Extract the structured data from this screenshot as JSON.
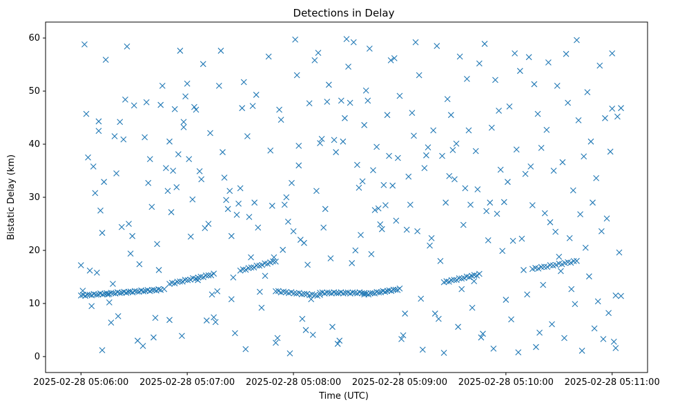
{
  "chart_data": {
    "type": "scatter",
    "title": "Detections in Delay",
    "xlabel": "Time (UTC)",
    "ylabel": "Bistatic Delay (km)",
    "x_unit": "seconds after 2025-02-28 05:06:00",
    "xlim": [
      -20,
      320
    ],
    "ylim": [
      -3,
      63
    ],
    "grid": false,
    "marker": "x",
    "marker_color": "#1f77b4",
    "x_ticks": [
      {
        "value": 0,
        "label": "2025-02-28 05:06:00"
      },
      {
        "value": 60,
        "label": "2025-02-28 05:07:00"
      },
      {
        "value": 120,
        "label": "2025-02-28 05:08:00"
      },
      {
        "value": 180,
        "label": "2025-02-28 05:09:00"
      },
      {
        "value": 240,
        "label": "2025-02-28 05:10:00"
      },
      {
        "value": 300,
        "label": "2025-02-28 05:11:00"
      }
    ],
    "y_ticks": [
      {
        "value": 0,
        "label": "0"
      },
      {
        "value": 10,
        "label": "10"
      },
      {
        "value": 20,
        "label": "20"
      },
      {
        "value": 30,
        "label": "30"
      },
      {
        "value": 40,
        "label": "40"
      },
      {
        "value": 50,
        "label": "50"
      },
      {
        "value": 60,
        "label": "60"
      }
    ],
    "track_segments": [
      {
        "x_start": 0,
        "x_end": 45,
        "y_start": 11.5,
        "y_end": 12.6,
        "count": 38
      },
      {
        "x_start": 50,
        "x_end": 75,
        "y_start": 13.7,
        "y_end": 15.5,
        "count": 18
      },
      {
        "x_start": 90,
        "x_end": 110,
        "y_start": 16.2,
        "y_end": 18.0,
        "count": 14
      },
      {
        "x_start": 110,
        "x_end": 135,
        "y_start": 12.3,
        "y_end": 11.5,
        "count": 18
      },
      {
        "x_start": 135,
        "x_end": 160,
        "y_start": 12.0,
        "y_end": 12.0,
        "count": 20
      },
      {
        "x_start": 160,
        "x_end": 180,
        "y_start": 11.7,
        "y_end": 12.7,
        "count": 18
      },
      {
        "x_start": 205,
        "x_end": 225,
        "y_start": 14.0,
        "y_end": 15.5,
        "count": 15
      },
      {
        "x_start": 255,
        "x_end": 280,
        "y_start": 16.5,
        "y_end": 18.0,
        "count": 16
      }
    ],
    "points": [
      [
        0,
        17.2
      ],
      [
        1,
        12.4
      ],
      [
        2,
        58.8
      ],
      [
        3,
        45.7
      ],
      [
        4,
        37.5
      ],
      [
        5,
        16.2
      ],
      [
        6,
        9.5
      ],
      [
        7,
        35.8
      ],
      [
        8,
        30.8
      ],
      [
        9,
        15.8
      ],
      [
        10,
        44.3
      ],
      [
        10,
        42.5
      ],
      [
        11,
        27.5
      ],
      [
        12,
        23.3
      ],
      [
        12,
        1.2
      ],
      [
        13,
        32.9
      ],
      [
        14,
        55.9
      ],
      [
        15,
        11.7
      ],
      [
        16,
        10.2
      ],
      [
        17,
        6.4
      ],
      [
        18,
        13.7
      ],
      [
        19,
        41.5
      ],
      [
        20,
        34.5
      ],
      [
        21,
        7.6
      ],
      [
        22,
        44.2
      ],
      [
        23,
        24.4
      ],
      [
        24,
        40.9
      ],
      [
        25,
        48.4
      ],
      [
        26,
        58.4
      ],
      [
        27,
        25.0
      ],
      [
        28,
        19.4
      ],
      [
        29,
        22.7
      ],
      [
        30,
        47.3
      ],
      [
        32,
        3.0
      ],
      [
        33,
        17.4
      ],
      [
        35,
        2.0
      ],
      [
        36,
        41.3
      ],
      [
        37,
        47.9
      ],
      [
        38,
        32.7
      ],
      [
        39,
        37.2
      ],
      [
        40,
        28.2
      ],
      [
        41,
        3.6
      ],
      [
        42,
        7.3
      ],
      [
        43,
        21.2
      ],
      [
        44,
        16.3
      ],
      [
        45,
        47.4
      ],
      [
        46,
        51.0
      ],
      [
        47,
        12.7
      ],
      [
        48,
        35.5
      ],
      [
        49,
        31.2
      ],
      [
        50,
        40.5
      ],
      [
        50,
        6.9
      ],
      [
        51,
        27.2
      ],
      [
        52,
        35.0
      ],
      [
        53,
        46.6
      ],
      [
        54,
        31.9
      ],
      [
        55,
        38.1
      ],
      [
        56,
        57.6
      ],
      [
        57,
        3.9
      ],
      [
        58,
        44.2
      ],
      [
        58,
        43.2
      ],
      [
        59,
        49.0
      ],
      [
        60,
        51.4
      ],
      [
        61,
        37.2
      ],
      [
        62,
        22.6
      ],
      [
        63,
        29.6
      ],
      [
        64,
        47.0
      ],
      [
        65,
        46.5
      ],
      [
        66,
        14.4
      ],
      [
        67,
        34.9
      ],
      [
        68,
        33.4
      ],
      [
        69,
        55.1
      ],
      [
        70,
        24.2
      ],
      [
        71,
        6.8
      ],
      [
        72,
        25.0
      ],
      [
        73,
        42.1
      ],
      [
        74,
        11.7
      ],
      [
        75,
        7.4
      ],
      [
        76,
        6.5
      ],
      [
        77,
        12.3
      ],
      [
        78,
        51.0
      ],
      [
        79,
        57.6
      ],
      [
        80,
        38.5
      ],
      [
        81,
        33.7
      ],
      [
        82,
        29.5
      ],
      [
        83,
        27.8
      ],
      [
        84,
        31.2
      ],
      [
        85,
        22.7
      ],
      [
        85,
        10.8
      ],
      [
        86,
        14.9
      ],
      [
        87,
        4.4
      ],
      [
        88,
        26.7
      ],
      [
        89,
        28.8
      ],
      [
        90,
        31.7
      ],
      [
        91,
        46.8
      ],
      [
        92,
        51.7
      ],
      [
        93,
        1.4
      ],
      [
        94,
        41.5
      ],
      [
        95,
        26.3
      ],
      [
        96,
        18.7
      ],
      [
        97,
        47.2
      ],
      [
        98,
        29.0
      ],
      [
        99,
        49.3
      ],
      [
        100,
        24.3
      ],
      [
        101,
        12.2
      ],
      [
        102,
        9.2
      ],
      [
        104,
        15.2
      ],
      [
        106,
        56.5
      ],
      [
        107,
        38.8
      ],
      [
        108,
        28.4
      ],
      [
        109,
        18.7
      ],
      [
        110,
        2.6
      ],
      [
        111,
        3.5
      ],
      [
        112,
        46.5
      ],
      [
        113,
        44.6
      ],
      [
        114,
        20.1
      ],
      [
        115,
        28.6
      ],
      [
        116,
        30.0
      ],
      [
        117,
        25.4
      ],
      [
        118,
        0.6
      ],
      [
        119,
        32.7
      ],
      [
        120,
        23.6
      ],
      [
        121,
        59.7
      ],
      [
        122,
        53.0
      ],
      [
        123,
        36.0
      ],
      [
        123,
        39.7
      ],
      [
        124,
        22.0
      ],
      [
        125,
        7.1
      ],
      [
        126,
        21.4
      ],
      [
        127,
        5.0
      ],
      [
        128,
        17.3
      ],
      [
        129,
        47.7
      ],
      [
        130,
        10.8
      ],
      [
        131,
        4.1
      ],
      [
        132,
        55.8
      ],
      [
        133,
        31.2
      ],
      [
        134,
        57.2
      ],
      [
        135,
        40.2
      ],
      [
        136,
        41.0
      ],
      [
        137,
        24.3
      ],
      [
        138,
        27.8
      ],
      [
        139,
        48.0
      ],
      [
        140,
        51.2
      ],
      [
        141,
        18.5
      ],
      [
        142,
        5.6
      ],
      [
        143,
        40.8
      ],
      [
        144,
        38.5
      ],
      [
        145,
        2.4
      ],
      [
        146,
        3.0
      ],
      [
        147,
        48.2
      ],
      [
        148,
        40.5
      ],
      [
        149,
        44.9
      ],
      [
        150,
        59.8
      ],
      [
        151,
        54.6
      ],
      [
        152,
        47.8
      ],
      [
        153,
        17.6
      ],
      [
        154,
        59.2
      ],
      [
        155,
        20.0
      ],
      [
        156,
        36.1
      ],
      [
        157,
        31.8
      ],
      [
        158,
        22.9
      ],
      [
        159,
        33.0
      ],
      [
        160,
        43.6
      ],
      [
        161,
        50.1
      ],
      [
        162,
        48.2
      ],
      [
        163,
        58.0
      ],
      [
        164,
        19.3
      ],
      [
        165,
        35.1
      ],
      [
        166,
        27.6
      ],
      [
        167,
        39.5
      ],
      [
        168,
        27.9
      ],
      [
        169,
        24.9
      ],
      [
        170,
        24.0
      ],
      [
        171,
        32.3
      ],
      [
        172,
        28.5
      ],
      [
        173,
        45.5
      ],
      [
        174,
        37.8
      ],
      [
        175,
        55.8
      ],
      [
        176,
        32.2
      ],
      [
        177,
        56.2
      ],
      [
        178,
        25.6
      ],
      [
        179,
        37.4
      ],
      [
        180,
        49.1
      ],
      [
        181,
        3.3
      ],
      [
        182,
        4.0
      ],
      [
        183,
        8.1
      ],
      [
        184,
        23.9
      ],
      [
        185,
        33.9
      ],
      [
        186,
        28.6
      ],
      [
        187,
        45.9
      ],
      [
        188,
        41.6
      ],
      [
        189,
        59.2
      ],
      [
        190,
        23.6
      ],
      [
        191,
        53.0
      ],
      [
        192,
        10.9
      ],
      [
        193,
        1.3
      ],
      [
        194,
        35.5
      ],
      [
        195,
        37.9
      ],
      [
        196,
        39.4
      ],
      [
        197,
        20.9
      ],
      [
        198,
        22.3
      ],
      [
        199,
        42.6
      ],
      [
        200,
        8.1
      ],
      [
        201,
        58.5
      ],
      [
        202,
        7.1
      ],
      [
        203,
        18.0
      ],
      [
        204,
        37.8
      ],
      [
        205,
        0.7
      ],
      [
        206,
        29.0
      ],
      [
        207,
        48.5
      ],
      [
        208,
        34.0
      ],
      [
        209,
        45.5
      ],
      [
        210,
        38.9
      ],
      [
        211,
        33.4
      ],
      [
        212,
        40.1
      ],
      [
        213,
        5.6
      ],
      [
        214,
        56.5
      ],
      [
        215,
        12.7
      ],
      [
        216,
        24.8
      ],
      [
        217,
        31.7
      ],
      [
        218,
        52.3
      ],
      [
        219,
        42.6
      ],
      [
        220,
        28.6
      ],
      [
        221,
        9.2
      ],
      [
        222,
        14.2
      ],
      [
        223,
        38.7
      ],
      [
        224,
        31.5
      ],
      [
        225,
        55.2
      ],
      [
        226,
        3.6
      ],
      [
        227,
        4.3
      ],
      [
        228,
        58.9
      ],
      [
        229,
        27.4
      ],
      [
        230,
        21.9
      ],
      [
        231,
        29.0
      ],
      [
        232,
        43.1
      ],
      [
        233,
        1.5
      ],
      [
        234,
        52.1
      ],
      [
        235,
        26.9
      ],
      [
        236,
        46.3
      ],
      [
        237,
        35.2
      ],
      [
        238,
        19.9
      ],
      [
        239,
        29.1
      ],
      [
        240,
        10.7
      ],
      [
        241,
        32.9
      ],
      [
        242,
        47.1
      ],
      [
        243,
        7.0
      ],
      [
        244,
        21.8
      ],
      [
        245,
        57.1
      ],
      [
        246,
        39.0
      ],
      [
        247,
        0.8
      ],
      [
        248,
        53.8
      ],
      [
        249,
        22.2
      ],
      [
        250,
        16.3
      ],
      [
        251,
        34.4
      ],
      [
        252,
        11.7
      ],
      [
        253,
        56.4
      ],
      [
        254,
        35.8
      ],
      [
        255,
        28.5
      ],
      [
        256,
        51.3
      ],
      [
        257,
        1.8
      ],
      [
        258,
        45.7
      ],
      [
        259,
        4.5
      ],
      [
        260,
        39.3
      ],
      [
        261,
        13.5
      ],
      [
        262,
        27.0
      ],
      [
        263,
        42.7
      ],
      [
        264,
        55.4
      ],
      [
        265,
        25.3
      ],
      [
        266,
        6.1
      ],
      [
        267,
        35.0
      ],
      [
        268,
        23.5
      ],
      [
        269,
        51.0
      ],
      [
        270,
        18.8
      ],
      [
        271,
        16.1
      ],
      [
        272,
        36.6
      ],
      [
        273,
        3.5
      ],
      [
        274,
        57.0
      ],
      [
        275,
        47.8
      ],
      [
        276,
        22.3
      ],
      [
        277,
        12.7
      ],
      [
        278,
        31.3
      ],
      [
        279,
        9.9
      ],
      [
        280,
        59.6
      ],
      [
        281,
        44.5
      ],
      [
        282,
        26.8
      ],
      [
        283,
        1.1
      ],
      [
        284,
        37.7
      ],
      [
        285,
        20.5
      ],
      [
        286,
        49.8
      ],
      [
        287,
        15.1
      ],
      [
        288,
        40.5
      ],
      [
        289,
        29.0
      ],
      [
        290,
        5.3
      ],
      [
        291,
        33.6
      ],
      [
        292,
        10.4
      ],
      [
        293,
        54.8
      ],
      [
        294,
        23.6
      ],
      [
        295,
        3.3
      ],
      [
        296,
        44.9
      ],
      [
        297,
        26.0
      ],
      [
        298,
        8.2
      ],
      [
        299,
        38.6
      ],
      [
        300,
        57.1
      ],
      [
        300,
        46.7
      ],
      [
        301,
        2.8
      ],
      [
        302,
        11.5
      ],
      [
        302,
        1.6
      ],
      [
        303,
        45.2
      ],
      [
        304,
        19.6
      ],
      [
        305,
        46.8
      ],
      [
        305,
        11.4
      ]
    ]
  }
}
